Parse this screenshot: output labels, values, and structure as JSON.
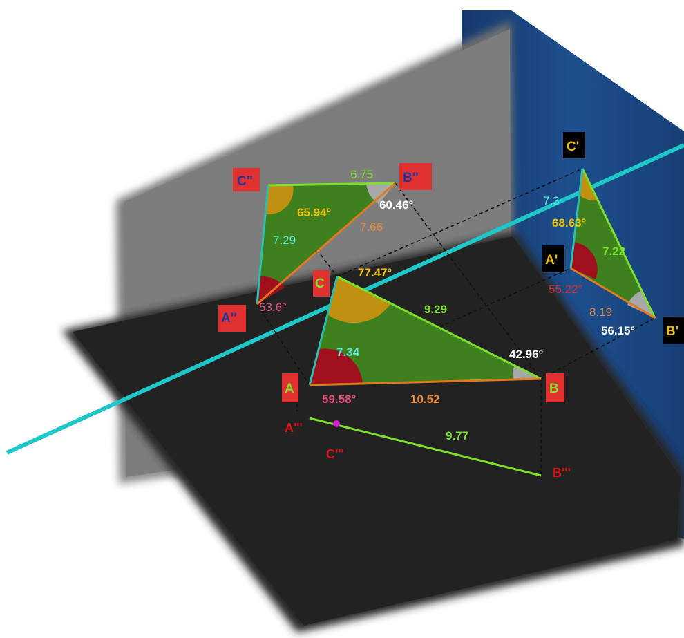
{
  "colors": {
    "background": "#ffffff",
    "grey_plane": "#7a7a7a",
    "blue_plane": "#1c4d8c",
    "dark_plane": "#262626",
    "axis_line": "#1ec8c8",
    "triangle_fill": "#3e7f1e",
    "edge_green": "#7de02a",
    "edge_orange": "#e07a22",
    "edge_teal": "#2bbfb0",
    "angle_red": "#a0101c",
    "angle_gold": "#c09010",
    "angle_grey": "#a8a8a8",
    "label_red_box": "#e03030",
    "label_black_box": "#000000",
    "point_magenta": "#d020d0"
  },
  "points": {
    "A": "A",
    "B": "B",
    "C": "C",
    "A1": "A'",
    "B1": "B'",
    "C1": "C'",
    "A2": "A''",
    "B2": "B''",
    "C2": "C''",
    "A3": "A'''",
    "B3": "B'''",
    "C3": "C'''"
  },
  "measures": {
    "main": {
      "AB": "10.52",
      "BC": "9.29",
      "AC": "7.34",
      "angle_A": "59.58°",
      "angle_B": "42.96°",
      "angle_C": "77.47°"
    },
    "front": {
      "A2B2": "7.66",
      "B2C2": "6.75",
      "A2C2": "7.29",
      "angle_A2": "53.6°",
      "angle_B2": "60.46°",
      "angle_C2": "65.94°"
    },
    "side": {
      "A1B1": "8.19",
      "B1C1": "7.22",
      "A1C1": "7.3",
      "angle_A1": "55.22°",
      "angle_B1": "56.15°",
      "angle_C1": "68.63°"
    },
    "bottom": {
      "A3B3": "9.77"
    }
  }
}
